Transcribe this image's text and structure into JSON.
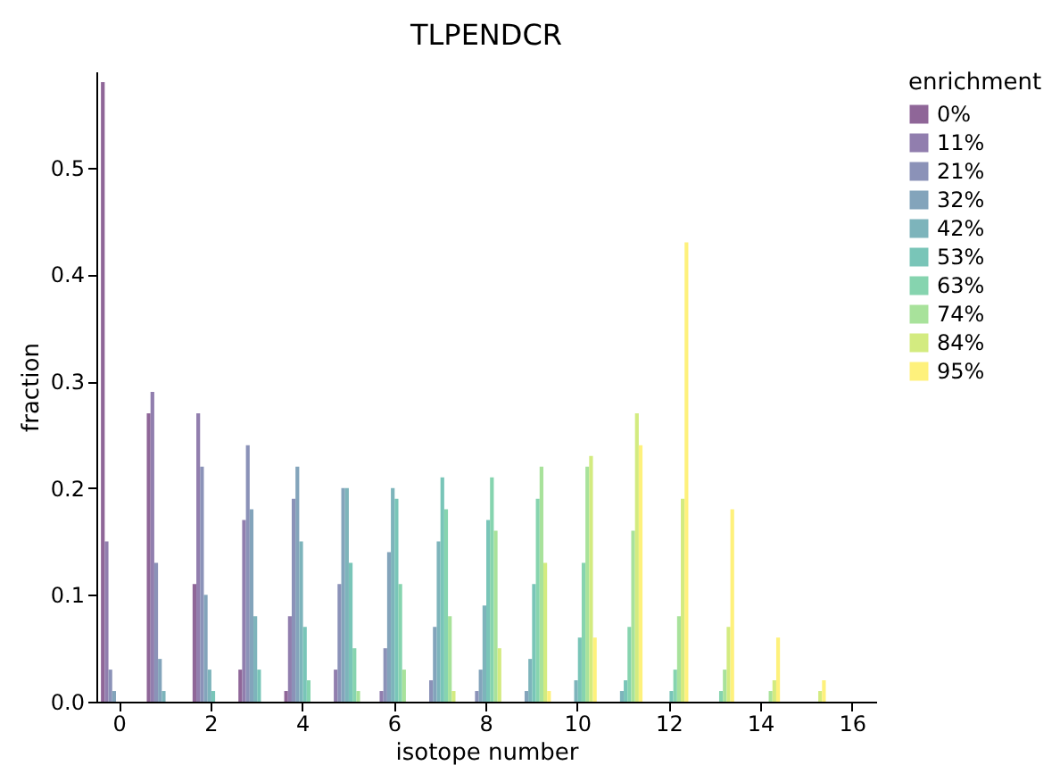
{
  "chart_data": {
    "type": "bar",
    "title": "TLPENDCR",
    "xlabel": "isotope number",
    "ylabel": "fraction",
    "legend_title": "enrichment",
    "legend": "right",
    "categories": [
      "0",
      null,
      "2",
      null,
      "4",
      null,
      "6",
      null,
      "8",
      null,
      "10",
      null,
      "12",
      null,
      "14",
      null,
      "16"
    ],
    "ylim": [
      0,
      0.59
    ],
    "yticks": [
      {
        "value": 0,
        "label": "0.0"
      },
      0.1,
      0.2,
      0.3,
      0.4,
      0.5
    ],
    "series": [
      {
        "name": "0%",
        "color": "#8f6698",
        "values": [
          0.58,
          0.27,
          0.11,
          0.03,
          0.01,
          0,
          0,
          0,
          0,
          0,
          0,
          0,
          0,
          0,
          0,
          0,
          0
        ]
      },
      {
        "name": "11%",
        "color": "#917eae",
        "values": [
          0.15,
          0.29,
          0.27,
          0.17,
          0.08,
          0.03,
          0.01,
          0,
          0,
          0,
          0,
          0,
          0,
          0,
          0,
          0,
          0
        ]
      },
      {
        "name": "21%",
        "color": "#8b92b8",
        "values": [
          0.03,
          0.13,
          0.22,
          0.24,
          0.19,
          0.11,
          0.05,
          0.02,
          0.01,
          0,
          0,
          0,
          0,
          0,
          0,
          0,
          0
        ]
      },
      {
        "name": "32%",
        "color": "#83a4bb",
        "values": [
          0.01,
          0.04,
          0.1,
          0.18,
          0.22,
          0.2,
          0.14,
          0.07,
          0.03,
          0.01,
          0,
          0,
          0,
          0,
          0,
          0,
          0
        ]
      },
      {
        "name": "42%",
        "color": "#7db4bb",
        "values": [
          0,
          0.01,
          0.03,
          0.08,
          0.15,
          0.2,
          0.2,
          0.15,
          0.09,
          0.04,
          0.02,
          0.01,
          0,
          0,
          0,
          0,
          0
        ]
      },
      {
        "name": "53%",
        "color": "#79c5b8",
        "values": [
          0,
          0,
          0.01,
          0.03,
          0.07,
          0.13,
          0.19,
          0.21,
          0.17,
          0.11,
          0.06,
          0.02,
          0.01,
          0,
          0,
          0,
          0
        ]
      },
      {
        "name": "63%",
        "color": "#86d4af",
        "values": [
          0,
          0,
          0,
          0,
          0.02,
          0.05,
          0.11,
          0.18,
          0.21,
          0.19,
          0.13,
          0.07,
          0.03,
          0.01,
          0,
          0,
          0
        ]
      },
      {
        "name": "74%",
        "color": "#a8e29b",
        "values": [
          0,
          0,
          0,
          0,
          0,
          0.01,
          0.03,
          0.08,
          0.16,
          0.22,
          0.22,
          0.16,
          0.08,
          0.03,
          0.01,
          0,
          0
        ]
      },
      {
        "name": "84%",
        "color": "#d3eb80",
        "values": [
          0,
          0,
          0,
          0,
          0,
          0,
          0,
          0.01,
          0.05,
          0.13,
          0.23,
          0.27,
          0.19,
          0.07,
          0.02,
          0.01,
          0
        ]
      },
      {
        "name": "95%",
        "color": "#fef17c",
        "values": [
          0,
          0,
          0,
          0,
          0,
          0,
          0,
          0,
          0,
          0.01,
          0.06,
          0.24,
          0.43,
          0.18,
          0.06,
          0.02,
          0
        ]
      }
    ]
  }
}
